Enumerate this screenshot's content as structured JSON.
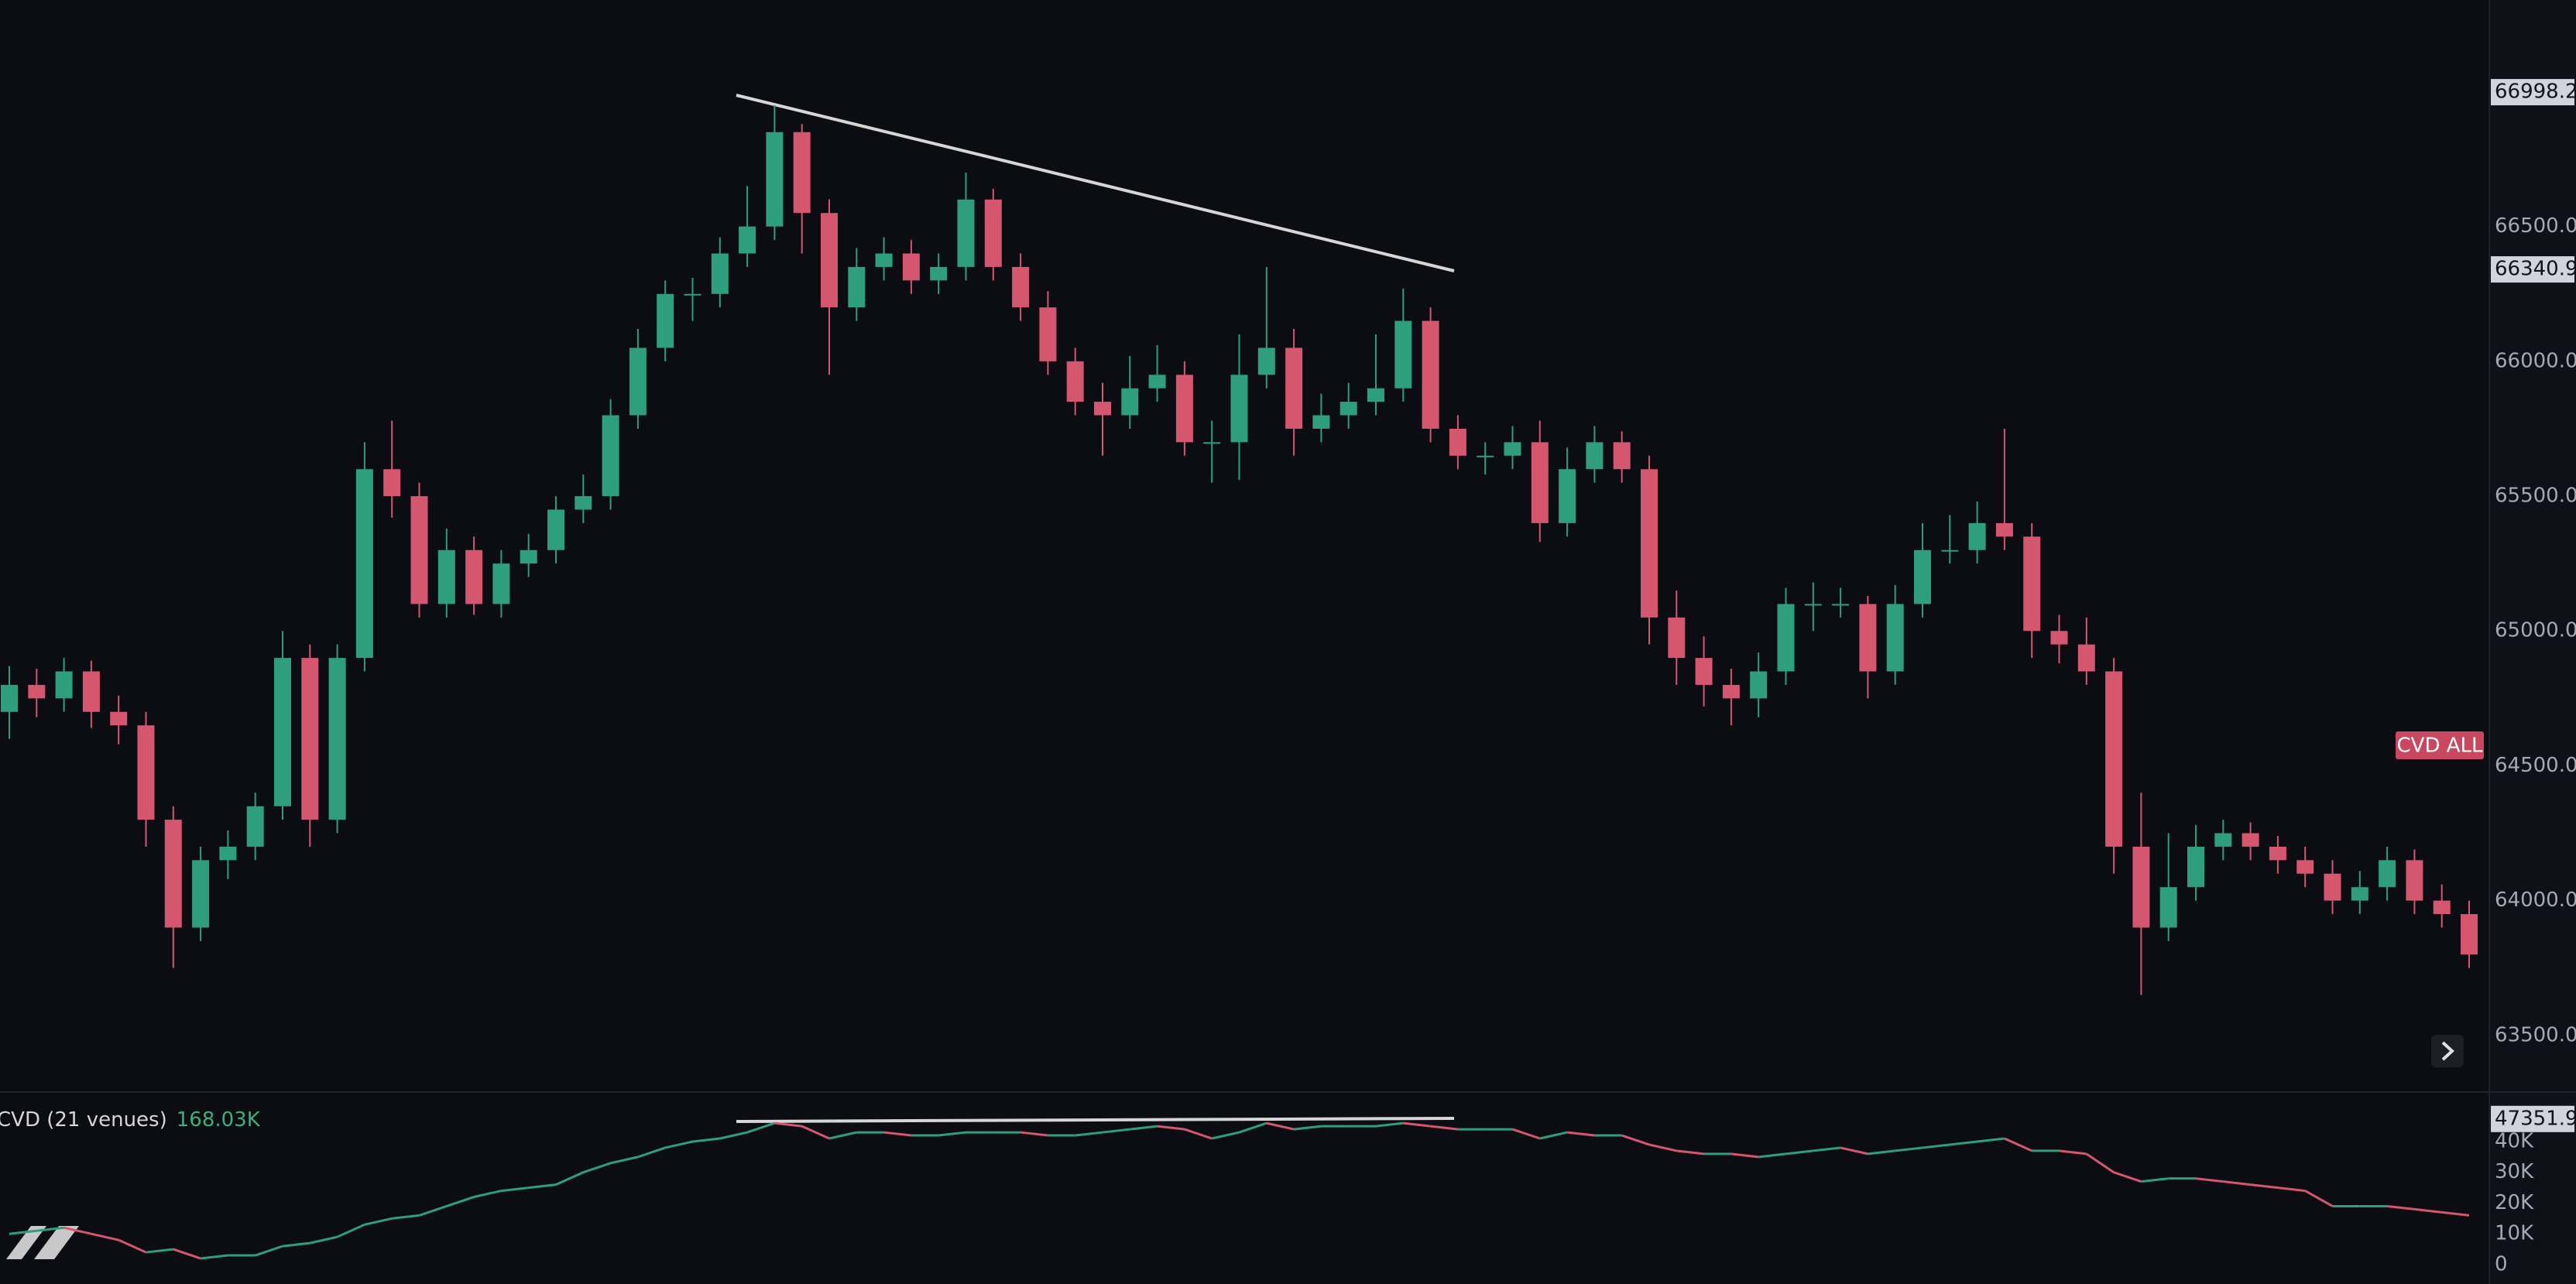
{
  "chart_data": [
    {
      "type": "candlestick",
      "up_color": "#2f9e7d",
      "down_color": "#d4566f",
      "grid": false,
      "ylim": [
        63290,
        67340
      ],
      "yticks": [
        {
          "value": 63500,
          "label": "63500.0"
        },
        {
          "value": 64000,
          "label": "64000.0"
        },
        {
          "value": 64500,
          "label": "64500.0"
        },
        {
          "value": 65000,
          "label": "65000.0"
        },
        {
          "value": 65500,
          "label": "65500.0"
        },
        {
          "value": 66000,
          "label": "66000.0"
        },
        {
          "value": 66500,
          "label": "66500.0"
        }
      ],
      "price_markers": [
        66998.2,
        66340.9
      ],
      "badge": "CVD ALL",
      "open": [
        64700,
        64800,
        64750,
        64850,
        64700,
        64650,
        64300,
        63900,
        64150,
        64200,
        64350,
        64900,
        64300,
        64900,
        65600,
        65500,
        65100,
        65300,
        65100,
        65250,
        65300,
        65450,
        65500,
        65800,
        66050,
        66250,
        66250,
        66400,
        66500,
        66850,
        66550,
        66200,
        66350,
        66400,
        66300,
        66350,
        66600,
        66350,
        66200,
        66000,
        65850,
        65800,
        65900,
        65950,
        65700,
        65700,
        65950,
        66050,
        65750,
        65800,
        65850,
        65900,
        66150,
        65750,
        65650,
        65650,
        65700,
        65400,
        65600,
        65700,
        65600,
        65050,
        64900,
        64800,
        64750,
        64850,
        65100,
        65100,
        65100,
        64850,
        65100,
        65300,
        65300,
        65400,
        65350,
        65000,
        64950,
        64850,
        64200,
        63900,
        64050,
        64200,
        64250,
        64200,
        64150,
        64100,
        64000,
        64050,
        64150,
        64000,
        63950
      ],
      "high": [
        64870,
        64860,
        64900,
        64890,
        64760,
        64700,
        64350,
        64200,
        64260,
        64400,
        65000,
        64950,
        64950,
        65700,
        65780,
        65550,
        65380,
        65350,
        65300,
        65360,
        65500,
        65580,
        65860,
        66120,
        66300,
        66310,
        66460,
        66650,
        66950,
        66880,
        66600,
        66420,
        66460,
        66450,
        66400,
        66700,
        66640,
        66400,
        66260,
        66050,
        65920,
        66020,
        66060,
        66000,
        65780,
        66100,
        66350,
        66120,
        65880,
        65920,
        66100,
        66270,
        66200,
        65800,
        65700,
        65760,
        65780,
        65680,
        65760,
        65740,
        65650,
        65150,
        64980,
        64860,
        64920,
        65160,
        65180,
        65160,
        65130,
        65170,
        65400,
        65430,
        65480,
        65750,
        65400,
        65060,
        65050,
        64900,
        64400,
        64250,
        64280,
        64300,
        64290,
        64240,
        64200,
        64150,
        64110,
        64200,
        64190,
        64060,
        64000
      ],
      "low": [
        64600,
        64680,
        64700,
        64640,
        64580,
        64200,
        63750,
        63850,
        64080,
        64150,
        64300,
        64200,
        64250,
        64850,
        65420,
        65050,
        65050,
        65060,
        65050,
        65200,
        65250,
        65400,
        65450,
        65750,
        66000,
        66150,
        66200,
        66350,
        66450,
        66400,
        65950,
        66150,
        66300,
        66250,
        66250,
        66300,
        66300,
        66150,
        65950,
        65800,
        65650,
        65750,
        65850,
        65650,
        65550,
        65560,
        65900,
        65650,
        65700,
        65750,
        65800,
        65850,
        65700,
        65600,
        65580,
        65600,
        65330,
        65350,
        65550,
        65550,
        64950,
        64800,
        64720,
        64650,
        64680,
        64800,
        65000,
        65050,
        64750,
        64800,
        65050,
        65250,
        65250,
        65300,
        64900,
        64880,
        64800,
        64100,
        63650,
        63850,
        64000,
        64150,
        64150,
        64100,
        64050,
        63950,
        63950,
        64000,
        63950,
        63900,
        63750
      ],
      "close": [
        64800,
        64750,
        64850,
        64700,
        64650,
        64300,
        63900,
        64150,
        64200,
        64350,
        64900,
        64300,
        64900,
        65600,
        65500,
        65100,
        65300,
        65100,
        65250,
        65300,
        65450,
        65500,
        65800,
        66050,
        66250,
        66250,
        66400,
        66500,
        66850,
        66550,
        66200,
        66350,
        66400,
        66300,
        66350,
        66600,
        66350,
        66200,
        66000,
        65850,
        65800,
        65900,
        65950,
        65700,
        65700,
        65950,
        66050,
        65750,
        65800,
        65850,
        65900,
        66150,
        65750,
        65650,
        65650,
        65700,
        65400,
        65600,
        65700,
        65600,
        65050,
        64900,
        64800,
        64750,
        64850,
        65100,
        65100,
        65100,
        64850,
        65100,
        65300,
        65300,
        65400,
        65350,
        65000,
        64950,
        64850,
        64200,
        63900,
        64050,
        64200,
        64250,
        64200,
        64150,
        64100,
        64000,
        64050,
        64150,
        64000,
        63950,
        63800
      ]
    },
    {
      "type": "line",
      "name": "CVD (21 venues)",
      "legend_value": "168.03K",
      "up_color": "#2f9e7d",
      "down_color": "#d4566f",
      "grid": false,
      "ylim": [
        -6300,
        56100
      ],
      "yticks": [
        0,
        {
          "value": 10000,
          "label": "10K"
        },
        {
          "value": 20000,
          "label": "20K"
        },
        {
          "value": 30000,
          "label": "30K"
        },
        {
          "value": 40000,
          "label": "40K"
        }
      ],
      "price_markers": [
        47351.9
      ],
      "values": [
        10000,
        11000,
        12000,
        10000,
        8000,
        4000,
        5000,
        2000,
        3000,
        3000,
        6000,
        7000,
        9000,
        13000,
        15000,
        16000,
        19000,
        22000,
        24000,
        25000,
        26000,
        30000,
        33000,
        35000,
        38000,
        40000,
        41000,
        43000,
        46000,
        45000,
        41000,
        43000,
        43000,
        42000,
        42000,
        43000,
        43000,
        43000,
        42000,
        42000,
        43000,
        44000,
        45000,
        44000,
        41000,
        43000,
        46000,
        44000,
        45000,
        45000,
        45000,
        46000,
        45000,
        44000,
        44000,
        44000,
        41000,
        43000,
        42000,
        42000,
        39000,
        37000,
        36000,
        36000,
        35000,
        36000,
        37000,
        38000,
        36000,
        37000,
        38000,
        39000,
        40000,
        41000,
        37000,
        37000,
        36000,
        30000,
        27000,
        28000,
        28000,
        27000,
        26000,
        25000,
        24000,
        19000,
        19000,
        19000,
        18000,
        17000,
        16000
      ]
    }
  ]
}
